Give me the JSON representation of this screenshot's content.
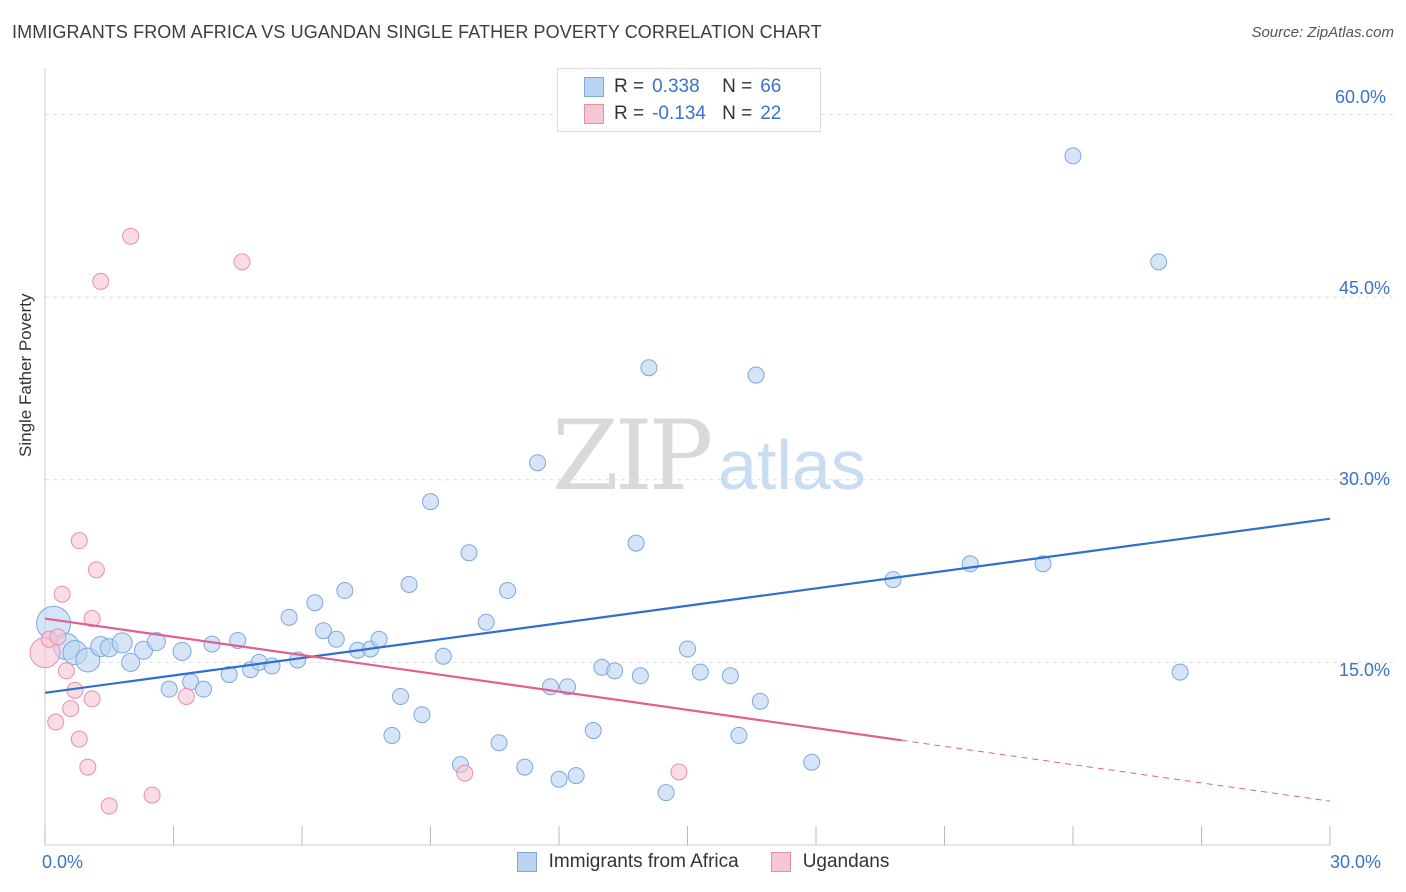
{
  "title": "IMMIGRANTS FROM AFRICA VS UGANDAN SINGLE FATHER POVERTY CORRELATION CHART",
  "source": "Source: ZipAtlas.com",
  "watermark": {
    "zip": "ZIP",
    "atlas": "atlas"
  },
  "legend_top": [
    {
      "r_label": "R =",
      "r_value": "0.338",
      "n_label": "N =",
      "n_value": "66"
    },
    {
      "r_label": "R =",
      "r_value": "-0.134",
      "n_label": "N =",
      "n_value": "22"
    }
  ],
  "colors": {
    "blue_fill": "#b9d3f1",
    "blue_stroke": "#7ea7dc",
    "blue_line": "#2f6fcf",
    "pink_fill": "#f7c5d3",
    "pink_stroke": "#e590ab",
    "pink_line": "#e0608e",
    "tick_text": "#3a73c8",
    "grid": "#dddddd"
  },
  "chart_data": {
    "type": "scatter",
    "title": "IMMIGRANTS FROM AFRICA VS UGANDAN SINGLE FATHER POVERTY CORRELATION CHART",
    "xlabel": "",
    "ylabel": "Single Father Poverty",
    "xlim": [
      0,
      30
    ],
    "ylim": [
      0,
      63
    ],
    "x_tick_labels": [
      "0.0%",
      "30.0%"
    ],
    "y_tick_labels": [
      {
        "value": 15,
        "label": "15.0%"
      },
      {
        "value": 30,
        "label": "30.0%"
      },
      {
        "value": 45,
        "label": "45.0%"
      },
      {
        "value": 60,
        "label": "60.0%"
      }
    ],
    "grid": "horizontal dashed",
    "legend_position": "bottom",
    "series": [
      {
        "name": "Immigrants from Africa",
        "color": "blue",
        "points": [
          [
            0.2,
            18.2,
            34
          ],
          [
            0.5,
            16.3,
            26
          ],
          [
            0.7,
            15.8,
            24
          ],
          [
            1.0,
            15.2,
            24
          ],
          [
            1.3,
            16.3,
            20
          ],
          [
            1.5,
            16.2,
            18
          ],
          [
            1.8,
            16.6,
            20
          ],
          [
            2.0,
            15.0,
            18
          ],
          [
            2.3,
            16.0,
            18
          ],
          [
            2.6,
            16.7,
            18
          ],
          [
            2.9,
            12.8,
            16
          ],
          [
            3.2,
            15.9,
            18
          ],
          [
            3.4,
            13.4,
            16
          ],
          [
            3.7,
            12.8,
            16
          ],
          [
            3.9,
            16.5,
            16
          ],
          [
            4.3,
            14.0,
            16
          ],
          [
            4.5,
            16.8,
            16
          ],
          [
            4.8,
            14.4,
            16
          ],
          [
            5.0,
            15.0,
            16
          ],
          [
            5.3,
            14.7,
            16
          ],
          [
            5.7,
            18.7,
            16
          ],
          [
            5.9,
            15.2,
            16
          ],
          [
            6.3,
            19.9,
            16
          ],
          [
            6.5,
            17.6,
            16
          ],
          [
            6.8,
            16.9,
            16
          ],
          [
            7.0,
            20.9,
            16
          ],
          [
            7.3,
            16.0,
            16
          ],
          [
            7.6,
            16.1,
            16
          ],
          [
            7.8,
            16.9,
            16
          ],
          [
            8.1,
            9.0,
            16
          ],
          [
            8.3,
            12.2,
            16
          ],
          [
            8.5,
            21.4,
            16
          ],
          [
            8.8,
            10.7,
            16
          ],
          [
            9.0,
            28.2,
            16
          ],
          [
            9.3,
            15.5,
            16
          ],
          [
            9.7,
            6.6,
            16
          ],
          [
            9.9,
            24.0,
            16
          ],
          [
            10.3,
            18.3,
            16
          ],
          [
            10.6,
            8.4,
            16
          ],
          [
            10.8,
            20.9,
            16
          ],
          [
            11.2,
            6.4,
            16
          ],
          [
            11.5,
            31.4,
            16
          ],
          [
            11.8,
            13.0,
            16
          ],
          [
            12.0,
            5.4,
            16
          ],
          [
            12.2,
            13.0,
            16
          ],
          [
            12.4,
            5.7,
            16
          ],
          [
            12.8,
            9.4,
            16
          ],
          [
            13.0,
            14.6,
            16
          ],
          [
            13.3,
            14.3,
            16
          ],
          [
            13.8,
            24.8,
            16
          ],
          [
            13.9,
            13.9,
            16
          ],
          [
            14.1,
            39.2,
            16
          ],
          [
            14.5,
            4.3,
            16
          ],
          [
            15.0,
            16.1,
            16
          ],
          [
            15.3,
            14.2,
            16
          ],
          [
            16.0,
            13.9,
            16
          ],
          [
            16.2,
            9.0,
            16
          ],
          [
            16.6,
            38.6,
            16
          ],
          [
            16.7,
            11.8,
            16
          ],
          [
            17.9,
            6.8,
            16
          ],
          [
            19.8,
            21.8,
            16
          ],
          [
            21.6,
            23.1,
            16
          ],
          [
            23.3,
            23.1,
            16
          ],
          [
            24.0,
            56.6,
            16
          ],
          [
            26.0,
            47.9,
            16
          ],
          [
            26.5,
            14.2,
            16
          ]
        ]
      },
      {
        "name": "Ugandans",
        "color": "pink",
        "points": [
          [
            0.0,
            15.8,
            30
          ],
          [
            0.1,
            16.9,
            16
          ],
          [
            0.3,
            17.1,
            16
          ],
          [
            0.4,
            20.6,
            16
          ],
          [
            0.5,
            14.3,
            16
          ],
          [
            0.6,
            11.2,
            16
          ],
          [
            0.7,
            12.7,
            16
          ],
          [
            0.8,
            8.7,
            16
          ],
          [
            0.8,
            25.0,
            16
          ],
          [
            1.0,
            6.4,
            16
          ],
          [
            1.1,
            12.0,
            16
          ],
          [
            1.1,
            18.6,
            16
          ],
          [
            1.2,
            22.6,
            16
          ],
          [
            1.3,
            46.3,
            16
          ],
          [
            1.5,
            3.2,
            16
          ],
          [
            2.0,
            50.0,
            16
          ],
          [
            2.5,
            4.1,
            16
          ],
          [
            3.3,
            12.2,
            16
          ],
          [
            4.6,
            47.9,
            16
          ],
          [
            9.8,
            5.9,
            16
          ],
          [
            14.8,
            6.0,
            16
          ],
          [
            0.25,
            10.1,
            16
          ]
        ]
      }
    ],
    "trend_lines": [
      {
        "series": "Immigrants from Africa",
        "x0": 0.0,
        "y0": 12.5,
        "x1": 30.0,
        "y1": 26.8,
        "dashed_from": null
      },
      {
        "series": "Ugandans",
        "x0": 0.0,
        "y0": 18.6,
        "x1": 30.0,
        "y1": 3.6,
        "dashed_from": 20.0
      }
    ]
  },
  "bottom_legend": [
    "Immigrants from Africa",
    "Ugandans"
  ]
}
